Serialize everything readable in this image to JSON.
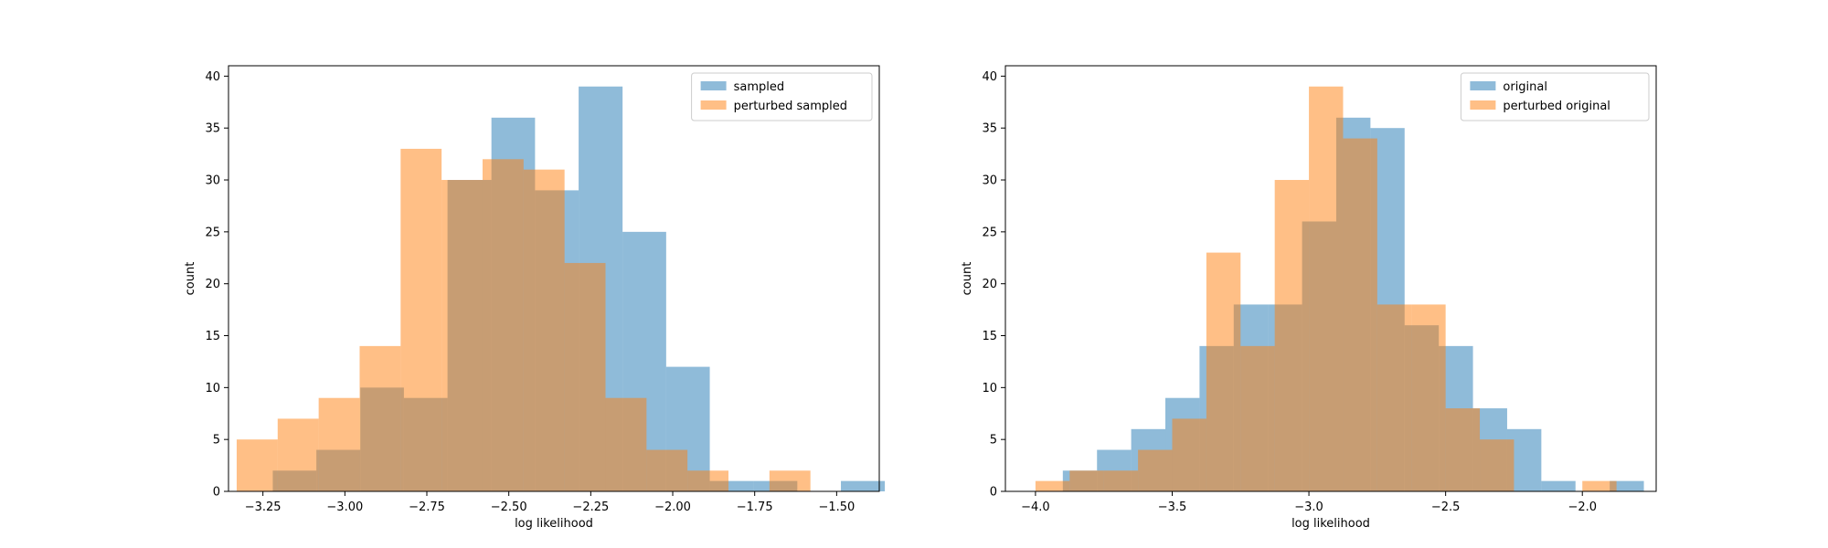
{
  "chart_data": [
    {
      "type": "bar",
      "histogram": true,
      "title": "",
      "xlabel": "log likelihood",
      "ylabel": "count",
      "xlim": [
        -3.355,
        -1.37
      ],
      "ylim": [
        0,
        41
      ],
      "xticks": [
        -3.25,
        -3.0,
        -2.75,
        -2.5,
        -2.25,
        -2.0,
        -1.75,
        -1.5
      ],
      "xtick_labels": [
        "−3.25",
        "−3.00",
        "−2.75",
        "−2.50",
        "−2.25",
        "−2.00",
        "−1.75",
        "−1.50"
      ],
      "yticks": [
        0,
        5,
        10,
        15,
        20,
        25,
        30,
        35,
        40
      ],
      "ytick_labels": [
        "0",
        "5",
        "10",
        "15",
        "20",
        "25",
        "30",
        "35",
        "40"
      ],
      "legend_position": "top-right",
      "grid": false,
      "series": [
        {
          "name": "sampled",
          "color": "#1f77b4",
          "opacity": 0.5,
          "bins": [
            [
              -3.22,
              -3.087,
              2
            ],
            [
              -3.087,
              -2.953,
              4
            ],
            [
              -2.953,
              -2.82,
              10
            ],
            [
              -2.82,
              -2.687,
              9
            ],
            [
              -2.687,
              -2.553,
              30
            ],
            [
              -2.553,
              -2.42,
              36
            ],
            [
              -2.42,
              -2.287,
              29
            ],
            [
              -2.287,
              -2.153,
              39
            ],
            [
              -2.153,
              -2.02,
              25
            ],
            [
              -2.02,
              -1.887,
              12
            ],
            [
              -1.887,
              -1.753,
              1
            ],
            [
              -1.753,
              -1.62,
              1
            ],
            [
              -1.62,
              -1.487,
              0
            ],
            [
              -1.487,
              -1.353,
              1
            ]
          ]
        },
        {
          "name": "perturbed sampled",
          "color": "#ff7f0e",
          "opacity": 0.5,
          "bins": [
            [
              -3.33,
              -3.205,
              5
            ],
            [
              -3.205,
              -3.08,
              7
            ],
            [
              -3.08,
              -2.955,
              9
            ],
            [
              -2.955,
              -2.83,
              14
            ],
            [
              -2.83,
              -2.705,
              33
            ],
            [
              -2.705,
              -2.58,
              30
            ],
            [
              -2.58,
              -2.455,
              32
            ],
            [
              -2.455,
              -2.33,
              31
            ],
            [
              -2.33,
              -2.205,
              22
            ],
            [
              -2.205,
              -2.08,
              9
            ],
            [
              -2.08,
              -1.955,
              4
            ],
            [
              -1.955,
              -1.83,
              2
            ],
            [
              -1.83,
              -1.705,
              0
            ],
            [
              -1.705,
              -1.58,
              2
            ]
          ]
        }
      ]
    },
    {
      "type": "bar",
      "histogram": true,
      "title": "",
      "xlabel": "log likelihood",
      "ylabel": "count",
      "xlim": [
        -4.11,
        -1.73
      ],
      "ylim": [
        0,
        41
      ],
      "xticks": [
        -4.0,
        -3.5,
        -3.0,
        -2.5,
        -2.0
      ],
      "xtick_labels": [
        "−4.0",
        "−3.5",
        "−3.0",
        "−2.5",
        "−2.0"
      ],
      "yticks": [
        0,
        5,
        10,
        15,
        20,
        25,
        30,
        35,
        40
      ],
      "ytick_labels": [
        "0",
        "5",
        "10",
        "15",
        "20",
        "25",
        "30",
        "35",
        "40"
      ],
      "legend_position": "top-right",
      "grid": false,
      "series": [
        {
          "name": "original",
          "color": "#1f77b4",
          "opacity": 0.5,
          "bins": [
            [
              -3.9,
              -3.775,
              2
            ],
            [
              -3.775,
              -3.65,
              4
            ],
            [
              -3.65,
              -3.525,
              6
            ],
            [
              -3.525,
              -3.4,
              9
            ],
            [
              -3.4,
              -3.275,
              14
            ],
            [
              -3.275,
              -3.15,
              18
            ],
            [
              -3.15,
              -3.025,
              18
            ],
            [
              -3.025,
              -2.9,
              26
            ],
            [
              -2.9,
              -2.775,
              36
            ],
            [
              -2.775,
              -2.65,
              35
            ],
            [
              -2.65,
              -2.525,
              16
            ],
            [
              -2.525,
              -2.4,
              14
            ],
            [
              -2.4,
              -2.275,
              8
            ],
            [
              -2.275,
              -2.15,
              6
            ],
            [
              -2.15,
              -2.025,
              1
            ],
            [
              -2.025,
              -1.9,
              0
            ],
            [
              -1.9,
              -1.775,
              1
            ]
          ]
        },
        {
          "name": "perturbed original",
          "color": "#ff7f0e",
          "opacity": 0.5,
          "bins": [
            [
              -4.0,
              -3.875,
              1
            ],
            [
              -3.875,
              -3.75,
              2
            ],
            [
              -3.75,
              -3.625,
              2
            ],
            [
              -3.625,
              -3.5,
              4
            ],
            [
              -3.5,
              -3.375,
              7
            ],
            [
              -3.375,
              -3.25,
              23
            ],
            [
              -3.25,
              -3.125,
              14
            ],
            [
              -3.125,
              -3.0,
              30
            ],
            [
              -3.0,
              -2.875,
              39
            ],
            [
              -2.875,
              -2.75,
              34
            ],
            [
              -2.75,
              -2.625,
              18
            ],
            [
              -2.625,
              -2.5,
              18
            ],
            [
              -2.5,
              -2.375,
              8
            ],
            [
              -2.375,
              -2.25,
              5
            ],
            [
              -2.25,
              -2.125,
              0
            ],
            [
              -2.125,
              -2.0,
              0
            ],
            [
              -2.0,
              -1.875,
              1
            ]
          ]
        }
      ]
    }
  ]
}
